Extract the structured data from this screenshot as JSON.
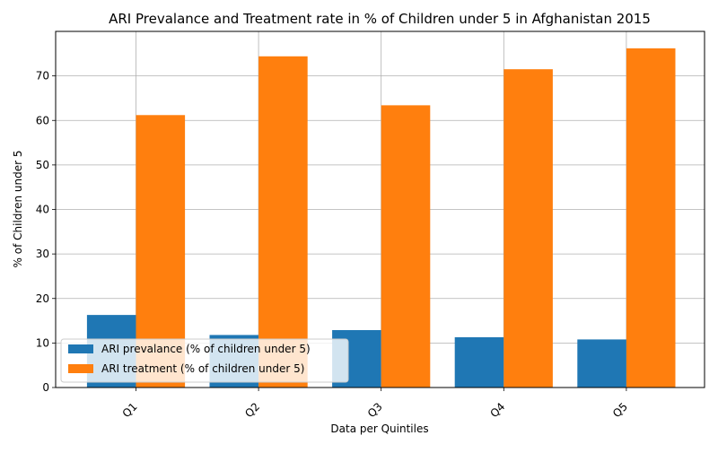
{
  "chart_data": {
    "type": "bar",
    "title": "ARI Prevalance and Treatment rate in % of Children under 5 in Afghanistan 2015",
    "xlabel": "Data per Quintiles",
    "ylabel": "% of Children under 5",
    "categories": [
      "Q1",
      "Q2",
      "Q3",
      "Q4",
      "Q5"
    ],
    "series": [
      {
        "name": "ARI prevalance (% of children under 5)",
        "color": "#1f77b4",
        "values": [
          16.3,
          11.8,
          12.9,
          11.3,
          10.8
        ]
      },
      {
        "name": "ARI treatment (% of children under 5)",
        "color": "#ff7f0e",
        "values": [
          61.2,
          74.4,
          63.4,
          71.5,
          76.2
        ]
      }
    ],
    "ylim": [
      0,
      80
    ],
    "yticks": [
      0,
      10,
      20,
      30,
      40,
      50,
      60,
      70
    ],
    "grid": true,
    "legend_position": "lower-left",
    "xtick_rotation": 45
  }
}
